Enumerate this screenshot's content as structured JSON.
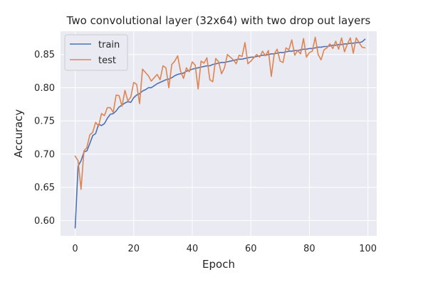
{
  "chart_data": {
    "type": "line",
    "title": "Two convolutional layer (32x64) with two drop out layers",
    "xlabel": "Epoch",
    "ylabel": "Accuracy",
    "xlim": [
      -5,
      103
    ],
    "ylim": [
      0.577,
      0.885
    ],
    "xticks": [
      0,
      20,
      40,
      60,
      80,
      100
    ],
    "yticks": [
      0.6,
      0.65,
      0.7,
      0.75,
      0.8,
      0.85
    ],
    "grid": true,
    "legend_position": "top-left",
    "series": [
      {
        "name": "train",
        "color": "#4c72b0",
        "values": [
          0.589,
          0.682,
          0.69,
          0.703,
          0.705,
          0.716,
          0.728,
          0.731,
          0.745,
          0.743,
          0.746,
          0.754,
          0.76,
          0.761,
          0.765,
          0.771,
          0.774,
          0.777,
          0.779,
          0.778,
          0.785,
          0.789,
          0.791,
          0.795,
          0.797,
          0.8,
          0.8,
          0.803,
          0.806,
          0.808,
          0.81,
          0.812,
          0.813,
          0.815,
          0.818,
          0.82,
          0.821,
          0.822,
          0.825,
          0.826,
          0.828,
          0.829,
          0.83,
          0.831,
          0.832,
          0.833,
          0.833,
          0.835,
          0.836,
          0.837,
          0.838,
          0.838,
          0.839,
          0.84,
          0.841,
          0.842,
          0.843,
          0.843,
          0.844,
          0.845,
          0.846,
          0.846,
          0.847,
          0.848,
          0.849,
          0.849,
          0.85,
          0.851,
          0.851,
          0.852,
          0.853,
          0.853,
          0.854,
          0.855,
          0.855,
          0.856,
          0.856,
          0.857,
          0.858,
          0.858,
          0.859,
          0.859,
          0.86,
          0.861,
          0.861,
          0.862,
          0.862,
          0.863,
          0.864,
          0.864,
          0.865,
          0.865,
          0.866,
          0.866,
          0.867,
          0.867,
          0.868,
          0.868,
          0.869,
          0.873
        ]
      },
      {
        "name": "test",
        "color": "#dd8452",
        "values": [
          0.697,
          0.69,
          0.647,
          0.705,
          0.71,
          0.729,
          0.733,
          0.748,
          0.742,
          0.761,
          0.758,
          0.77,
          0.77,
          0.763,
          0.789,
          0.788,
          0.772,
          0.796,
          0.78,
          0.786,
          0.808,
          0.805,
          0.776,
          0.828,
          0.823,
          0.818,
          0.81,
          0.815,
          0.82,
          0.812,
          0.833,
          0.83,
          0.8,
          0.835,
          0.84,
          0.848,
          0.825,
          0.814,
          0.83,
          0.824,
          0.839,
          0.834,
          0.798,
          0.84,
          0.837,
          0.845,
          0.812,
          0.809,
          0.844,
          0.839,
          0.821,
          0.83,
          0.85,
          0.846,
          0.842,
          0.836,
          0.849,
          0.847,
          0.868,
          0.836,
          0.84,
          0.845,
          0.85,
          0.846,
          0.855,
          0.848,
          0.856,
          0.817,
          0.851,
          0.858,
          0.84,
          0.838,
          0.86,
          0.857,
          0.872,
          0.849,
          0.856,
          0.851,
          0.874,
          0.846,
          0.853,
          0.855,
          0.876,
          0.85,
          0.842,
          0.857,
          0.86,
          0.866,
          0.859,
          0.87,
          0.858,
          0.875,
          0.854,
          0.866,
          0.875,
          0.852,
          0.875,
          0.868,
          0.861,
          0.86
        ]
      }
    ]
  }
}
